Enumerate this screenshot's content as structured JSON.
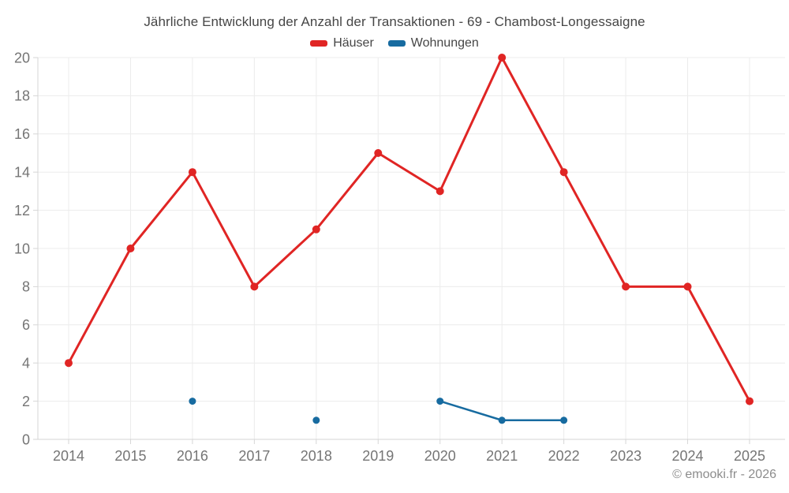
{
  "page": {
    "title": "Jährliche Entwicklung der Anzahl der Transaktionen - 69 - Chambost-Longessaigne",
    "footer": "© emooki.fr - 2026"
  },
  "legend": {
    "items": [
      {
        "label": "Häuser",
        "color": "#e02524"
      },
      {
        "label": "Wohnungen",
        "color": "#176ba0"
      }
    ]
  },
  "chart_data": {
    "type": "line",
    "title": "Jährliche Entwicklung der Anzahl der Transaktionen - 69 - Chambost-Longessaigne",
    "categories": [
      "2014",
      "2015",
      "2016",
      "2017",
      "2018",
      "2019",
      "2020",
      "2021",
      "2022",
      "2023",
      "2024",
      "2025"
    ],
    "series": [
      {
        "name": "Häuser",
        "color": "#e02524",
        "values": [
          4,
          10,
          14,
          8,
          11,
          15,
          13,
          20,
          14,
          8,
          8,
          2
        ]
      },
      {
        "name": "Wohnungen",
        "color": "#176ba0",
        "values": [
          null,
          null,
          2,
          null,
          1,
          null,
          2,
          1,
          1,
          null,
          null,
          null
        ]
      }
    ],
    "xlabel": "",
    "ylabel": "",
    "ylim": [
      0,
      20
    ],
    "ytick_step": 2,
    "grid": true,
    "legend_position": "top"
  },
  "style": {
    "background": "#ffffff",
    "grid_color": "#ececec",
    "axis_color": "#d6d6d6",
    "tick_label_color": "#757575",
    "title_color": "#464646",
    "footer_color": "#8c8c8c"
  }
}
